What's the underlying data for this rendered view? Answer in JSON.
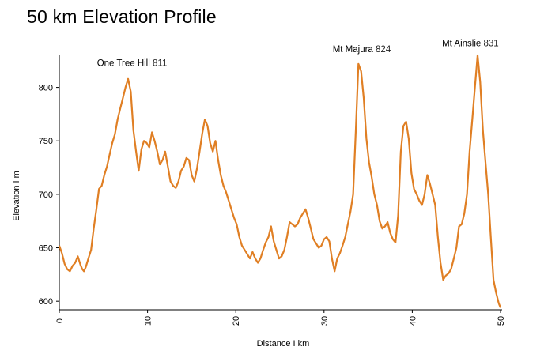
{
  "chart_data": {
    "type": "line",
    "title": "50 km Elevation Profile",
    "xlabel": "Distance I km",
    "ylabel": "Elevation I m",
    "xlim": [
      0,
      50
    ],
    "ylim": [
      592,
      830
    ],
    "xticks": [
      0,
      10,
      20,
      30,
      40,
      50
    ],
    "yticks": [
      600,
      650,
      700,
      750,
      800
    ],
    "line_color": "#e07f24",
    "series": [
      {
        "name": "Elevation",
        "x": [
          0,
          0.3,
          0.6,
          0.9,
          1.2,
          1.5,
          1.8,
          2.1,
          2.4,
          2.6,
          2.8,
          3.0,
          3.3,
          3.6,
          3.9,
          4.2,
          4.5,
          4.8,
          5.1,
          5.4,
          5.7,
          6.0,
          6.3,
          6.6,
          6.9,
          7.2,
          7.5,
          7.8,
          8.1,
          8.4,
          8.7,
          9.0,
          9.3,
          9.6,
          9.9,
          10.2,
          10.5,
          10.8,
          11.1,
          11.4,
          11.7,
          12.0,
          12.3,
          12.6,
          12.9,
          13.2,
          13.5,
          13.8,
          14.1,
          14.4,
          14.7,
          15.0,
          15.3,
          15.6,
          15.9,
          16.2,
          16.5,
          16.8,
          17.1,
          17.4,
          17.7,
          18.0,
          18.3,
          18.6,
          18.9,
          19.2,
          19.5,
          19.8,
          20.1,
          20.4,
          20.7,
          21.0,
          21.3,
          21.6,
          21.9,
          22.2,
          22.5,
          22.8,
          23.1,
          23.4,
          23.7,
          24.0,
          24.3,
          24.6,
          24.9,
          25.2,
          25.5,
          25.8,
          26.1,
          26.4,
          26.7,
          27.0,
          27.3,
          27.6,
          27.9,
          28.2,
          28.5,
          28.8,
          29.1,
          29.4,
          29.7,
          30.0,
          30.3,
          30.6,
          30.9,
          31.2,
          31.5,
          31.8,
          32.1,
          32.4,
          32.7,
          33.0,
          33.3,
          33.6,
          33.9,
          34.2,
          34.5,
          34.8,
          35.1,
          35.4,
          35.7,
          36.0,
          36.3,
          36.6,
          36.9,
          37.2,
          37.5,
          37.8,
          38.1,
          38.4,
          38.7,
          39.0,
          39.3,
          39.6,
          39.9,
          40.2,
          40.5,
          40.8,
          41.1,
          41.4,
          41.7,
          42.0,
          42.3,
          42.6,
          42.9,
          43.2,
          43.5,
          43.8,
          44.1,
          44.4,
          44.7,
          45.0,
          45.3,
          45.6,
          45.9,
          46.2,
          46.5,
          46.8,
          47.1,
          47.4,
          47.7,
          48.0,
          48.3,
          48.6,
          48.9,
          49.2,
          49.5,
          49.8,
          50.0
        ],
        "y": [
          652,
          645,
          635,
          630,
          628,
          633,
          636,
          642,
          634,
          630,
          628,
          632,
          640,
          648,
          668,
          686,
          705,
          708,
          718,
          726,
          737,
          748,
          756,
          770,
          780,
          790,
          800,
          808,
          796,
          760,
          740,
          722,
          742,
          750,
          748,
          744,
          758,
          750,
          740,
          728,
          732,
          740,
          726,
          712,
          708,
          706,
          712,
          722,
          726,
          734,
          732,
          718,
          712,
          724,
          740,
          757,
          770,
          764,
          748,
          740,
          750,
          732,
          718,
          708,
          702,
          694,
          686,
          678,
          672,
          660,
          652,
          648,
          644,
          640,
          646,
          640,
          636,
          640,
          648,
          655,
          660,
          670,
          656,
          648,
          640,
          642,
          648,
          660,
          674,
          672,
          670,
          672,
          678,
          682,
          686,
          678,
          668,
          658,
          654,
          650,
          652,
          658,
          660,
          656,
          640,
          628,
          640,
          645,
          652,
          660,
          672,
          684,
          700,
          760,
          822,
          815,
          790,
          752,
          730,
          716,
          700,
          690,
          675,
          668,
          670,
          674,
          664,
          658,
          655,
          680,
          740,
          764,
          768,
          752,
          720,
          705,
          700,
          694,
          690,
          700,
          718,
          710,
          700,
          690,
          660,
          636,
          620,
          624,
          626,
          630,
          640,
          650,
          670,
          672,
          682,
          700,
          740,
          770,
          800,
          830,
          805,
          760,
          730,
          700,
          660,
          620,
          608,
          598,
          594
        ]
      }
    ],
    "annotations": [
      {
        "name": "One Tree Hill",
        "value": "811",
        "x": 7.5,
        "y": 811
      },
      {
        "name": "Mt Majura",
        "value": "824",
        "x": 35.1,
        "y": 824
      },
      {
        "name": "Mt Ainslie",
        "value": "831",
        "x": 47.5,
        "y": 831
      }
    ]
  }
}
